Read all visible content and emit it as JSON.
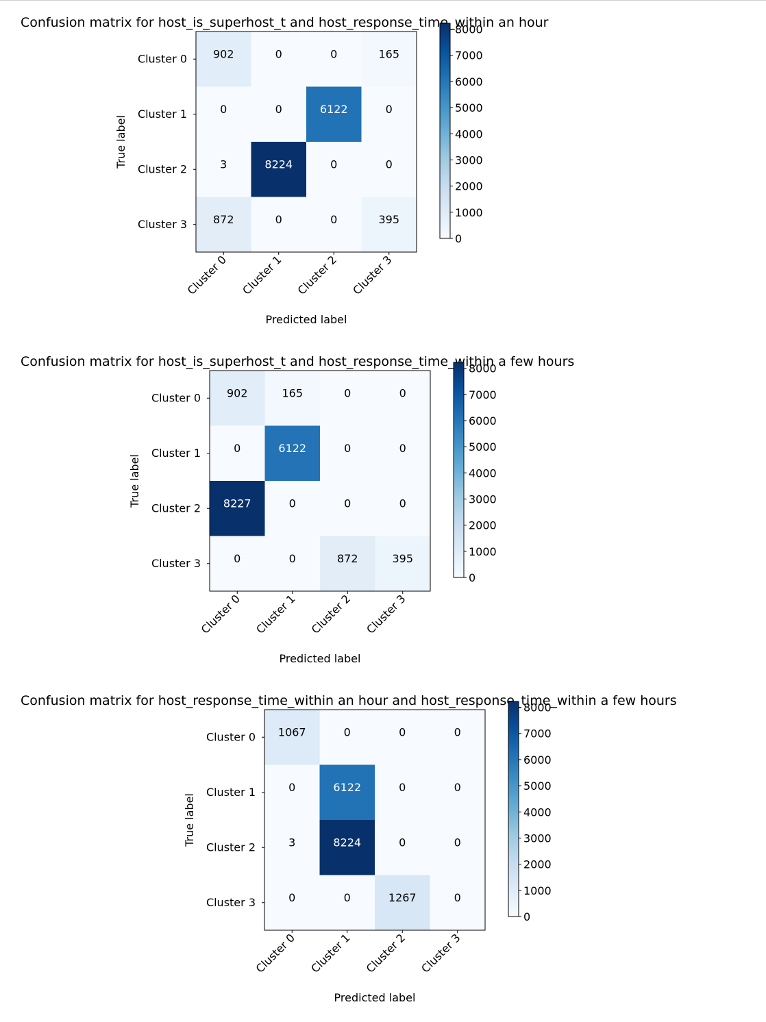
{
  "chart_data": [
    {
      "type": "heatmap",
      "title": "Confusion matrix for host_is_superhost_t and host_response_time_within an hour",
      "xlabel": "Predicted label",
      "ylabel": "True label",
      "row_labels": [
        "Cluster 0",
        "Cluster 1",
        "Cluster 2",
        "Cluster 3"
      ],
      "col_labels": [
        "Cluster 0",
        "Cluster 1",
        "Cluster 2",
        "Cluster 3"
      ],
      "values": [
        [
          902,
          0,
          0,
          165
        ],
        [
          0,
          0,
          6122,
          0
        ],
        [
          3,
          8224,
          0,
          0
        ],
        [
          872,
          0,
          0,
          395
        ]
      ],
      "colorbar": {
        "min": 0,
        "max": 8224,
        "ticks": [
          0,
          1000,
          2000,
          3000,
          4000,
          5000,
          6000,
          7000,
          8000
        ],
        "colormap": "Blues"
      }
    },
    {
      "type": "heatmap",
      "title": "Confusion matrix for host_is_superhost_t and host_response_time_within a few hours",
      "xlabel": "Predicted label",
      "ylabel": "True label",
      "row_labels": [
        "Cluster 0",
        "Cluster 1",
        "Cluster 2",
        "Cluster 3"
      ],
      "col_labels": [
        "Cluster 0",
        "Cluster 1",
        "Cluster 2",
        "Cluster 3"
      ],
      "values": [
        [
          902,
          165,
          0,
          0
        ],
        [
          0,
          6122,
          0,
          0
        ],
        [
          8227,
          0,
          0,
          0
        ],
        [
          0,
          0,
          872,
          395
        ]
      ],
      "colorbar": {
        "min": 0,
        "max": 8227,
        "ticks": [
          0,
          1000,
          2000,
          3000,
          4000,
          5000,
          6000,
          7000,
          8000
        ],
        "colormap": "Blues"
      }
    },
    {
      "type": "heatmap",
      "title": "Confusion matrix for host_response_time_within an hour and host_response_time_within a few hours",
      "xlabel": "Predicted label",
      "ylabel": "True label",
      "row_labels": [
        "Cluster 0",
        "Cluster 1",
        "Cluster 2",
        "Cluster 3"
      ],
      "col_labels": [
        "Cluster 0",
        "Cluster 1",
        "Cluster 2",
        "Cluster 3"
      ],
      "values": [
        [
          1067,
          0,
          0,
          0
        ],
        [
          0,
          6122,
          0,
          0
        ],
        [
          3,
          8224,
          0,
          0
        ],
        [
          0,
          0,
          1267,
          0
        ]
      ],
      "colorbar": {
        "min": 0,
        "max": 8224,
        "ticks": [
          0,
          1000,
          2000,
          3000,
          4000,
          5000,
          6000,
          7000,
          8000
        ],
        "colormap": "Blues"
      }
    }
  ]
}
